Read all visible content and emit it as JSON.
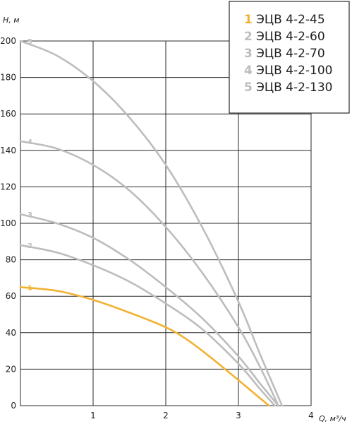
{
  "chart_data": {
    "type": "line",
    "xlabel": "Q, м³/ч",
    "ylabel": "Н, м",
    "xlim": [
      0,
      4
    ],
    "ylim": [
      0,
      200
    ],
    "x_ticks": [
      1,
      2,
      3,
      4
    ],
    "y_ticks": [
      0,
      20,
      40,
      60,
      80,
      100,
      120,
      140,
      160,
      180,
      200
    ],
    "grid": true,
    "legend_position": "top-right",
    "series": [
      {
        "id": "1",
        "name": "ЭЦВ 4-2-45",
        "color": "#f2b233",
        "x": [
          0,
          0.5,
          1.0,
          1.5,
          2.0,
          2.3,
          2.6,
          3.0,
          3.3,
          3.42
        ],
        "y": [
          65,
          63,
          58,
          51,
          43,
          36,
          27,
          14,
          4,
          0
        ]
      },
      {
        "id": "2",
        "name": "ЭЦВ 4-2-60",
        "color": "#bdbdbd",
        "x": [
          0,
          0.5,
          1.0,
          1.5,
          2.0,
          2.5,
          3.0,
          3.3,
          3.5
        ],
        "y": [
          88,
          84,
          77,
          68,
          56,
          42,
          23,
          9,
          0
        ]
      },
      {
        "id": "3",
        "name": "ЭЦВ 4-2-70",
        "color": "#bdbdbd",
        "x": [
          0,
          0.5,
          1.0,
          1.5,
          2.0,
          2.5,
          3.0,
          3.3,
          3.55
        ],
        "y": [
          105,
          100,
          92,
          80,
          65,
          48,
          27,
          12,
          0
        ]
      },
      {
        "id": "4",
        "name": "ЭЦВ 4-2-100",
        "color": "#bdbdbd",
        "x": [
          0,
          0.5,
          1.0,
          1.5,
          2.0,
          2.5,
          3.0,
          3.3,
          3.55
        ],
        "y": [
          145,
          141,
          132,
          118,
          98,
          73,
          43,
          21,
          0
        ]
      },
      {
        "id": "5",
        "name": "ЭЦВ 4-2-130",
        "color": "#bdbdbd",
        "x": [
          0,
          0.5,
          1.0,
          1.5,
          2.0,
          2.5,
          3.0,
          3.3,
          3.6
        ],
        "y": [
          200,
          192,
          178,
          158,
          132,
          98,
          57,
          28,
          0
        ]
      }
    ]
  }
}
